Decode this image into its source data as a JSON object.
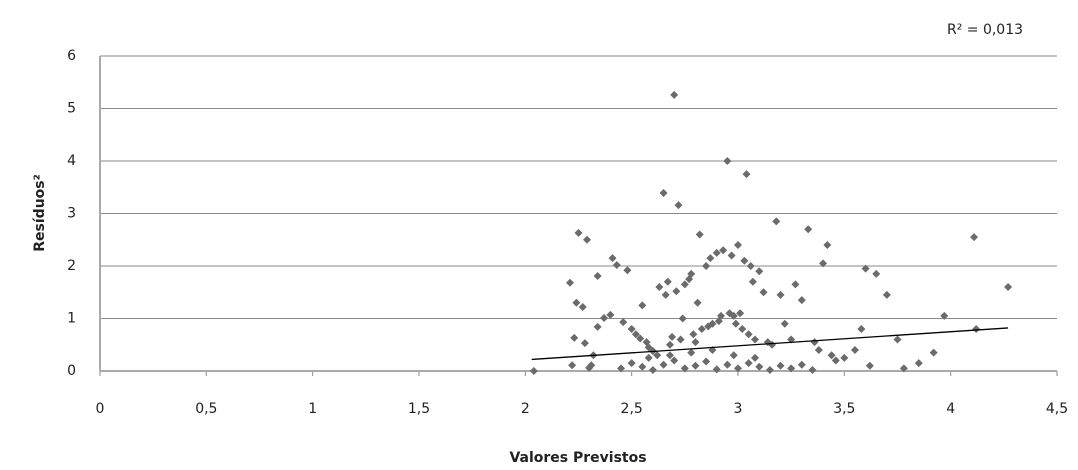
{
  "chart_data": {
    "type": "scatter",
    "annotation": "R² = 0,013",
    "y_label": "Resíduos²",
    "x_label": "Valores Previstos",
    "xlim": [
      0,
      4.5
    ],
    "xticks": [
      0,
      {
        "value": 0.5,
        "label": "0,5"
      },
      1,
      {
        "value": 1.5,
        "label": "1,5"
      },
      2,
      {
        "value": 2.5,
        "label": "2,5"
      },
      3,
      {
        "value": 3.5,
        "label": "3,5"
      },
      4,
      {
        "value": 4.5,
        "label": "4,5"
      }
    ],
    "ylim": [
      0,
      6
    ],
    "yticks": [
      0,
      1,
      2,
      3,
      4,
      5,
      6
    ],
    "grid": true,
    "series": [
      {
        "color": "#6b6b6b",
        "x": [
          2.04,
          2.22,
          2.21,
          2.23,
          2.28,
          2.34,
          2.25,
          2.29,
          2.24,
          2.27,
          2.31,
          2.3,
          2.32,
          2.34,
          2.37,
          2.4,
          2.41,
          2.43,
          2.46,
          2.48,
          2.5,
          2.52,
          2.54,
          2.55,
          2.57,
          2.58,
          2.6,
          2.62,
          2.63,
          2.65,
          2.66,
          2.67,
          2.68,
          2.69,
          2.7,
          2.71,
          2.72,
          2.73,
          2.74,
          2.75,
          2.77,
          2.78,
          2.79,
          2.8,
          2.81,
          2.82,
          2.83,
          2.85,
          2.86,
          2.87,
          2.88,
          2.9,
          2.91,
          2.92,
          2.93,
          2.95,
          2.96,
          2.97,
          2.98,
          2.99,
          3.0,
          3.01,
          3.02,
          3.03,
          3.04,
          3.05,
          3.06,
          3.07,
          3.08,
          3.1,
          3.12,
          3.14,
          3.16,
          3.18,
          3.2,
          3.22,
          3.25,
          3.27,
          3.3,
          3.33,
          3.36,
          3.38,
          3.4,
          3.42,
          3.44,
          3.46,
          3.5,
          3.55,
          3.58,
          3.6,
          3.62,
          3.65,
          3.7,
          3.75,
          3.78,
          3.85,
          3.92,
          3.97,
          4.11,
          4.12,
          4.27,
          2.45,
          2.5,
          2.55,
          2.6,
          2.65,
          2.7,
          2.75,
          2.8,
          2.85,
          2.9,
          2.95,
          3.0,
          3.05,
          3.1,
          3.15,
          3.2,
          3.25,
          3.3,
          3.35,
          2.58,
          2.68,
          2.78,
          2.88,
          2.98,
          3.08
        ],
        "values": [
          0,
          0.11,
          1.68,
          0.63,
          0.53,
          1.81,
          2.63,
          2.5,
          1.3,
          1.22,
          0.11,
          0.06,
          0.3,
          0.84,
          1.01,
          1.07,
          2.15,
          2.02,
          0.93,
          1.92,
          0.8,
          0.7,
          0.62,
          1.25,
          0.55,
          0.45,
          0.38,
          0.3,
          1.6,
          3.39,
          1.45,
          1.7,
          0.5,
          0.65,
          5.26,
          1.52,
          3.16,
          0.6,
          1.0,
          1.65,
          1.75,
          1.85,
          0.7,
          0.55,
          1.3,
          2.6,
          0.8,
          2.0,
          0.85,
          2.15,
          0.9,
          2.25,
          0.95,
          1.05,
          2.3,
          4.0,
          1.1,
          2.2,
          1.05,
          0.9,
          2.4,
          1.1,
          0.8,
          2.1,
          3.75,
          0.7,
          2.0,
          1.7,
          0.6,
          1.9,
          1.5,
          0.55,
          0.5,
          2.85,
          1.45,
          0.9,
          0.6,
          1.65,
          1.35,
          2.7,
          0.55,
          0.4,
          2.05,
          2.4,
          0.3,
          0.2,
          0.25,
          0.4,
          0.8,
          1.95,
          0.1,
          1.85,
          1.45,
          0.6,
          0.05,
          0.15,
          0.35,
          1.05,
          2.55,
          0.8,
          1.6,
          0.05,
          0.15,
          0.08,
          0.02,
          0.12,
          0.2,
          0.05,
          0.1,
          0.18,
          0.03,
          0.12,
          0.05,
          0.15,
          0.08,
          0.02,
          0.1,
          0.05,
          0.12,
          0.02,
          0.25,
          0.3,
          0.35,
          0.4,
          0.3,
          0.25
        ]
      }
    ],
    "trendline": {
      "color": "#000000",
      "x": [
        2.03,
        4.27
      ],
      "values": [
        0.22,
        0.82
      ]
    }
  }
}
